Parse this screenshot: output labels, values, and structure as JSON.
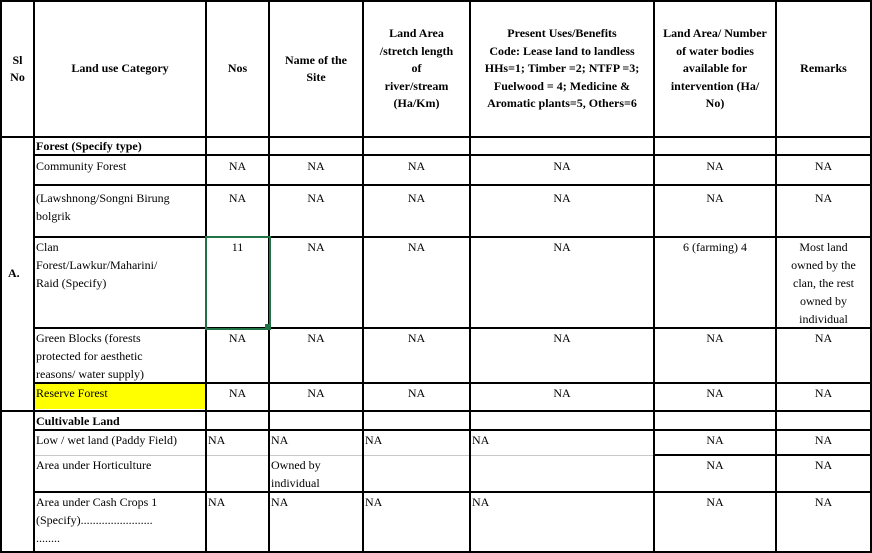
{
  "header": {
    "sl_no": "Sl\nNo",
    "land_use_category": "Land use Category",
    "nos": "Nos",
    "name_of_site": "Name of the\nSite",
    "land_area": "Land Area\n/stretch length\nof\nriver/stream\n(Ha/Km)",
    "present_uses": "Present Uses/Benefits\nCode: Lease land to landless\nHHs=1; Timber =2; NTFP =3;\nFuelwood = 4; Medicine &\nAromatic plants=5, Others=6",
    "water_bodies": "Land Area/ Number\nof water bodies\navailable for\nintervention (Ha/\nNo)",
    "remarks": "Remarks"
  },
  "section_a": {
    "label": "A.",
    "title": "Forest (Specify type)",
    "rows": [
      {
        "category": "Community Forest",
        "nos": "NA",
        "site": "NA",
        "area": "NA",
        "uses": "NA",
        "water": "NA",
        "remarks": "NA"
      },
      {
        "category": "(Lawshnong/Songni Birung\nbolgrik",
        "nos": "NA",
        "site": "NA",
        "area": "NA",
        "uses": "NA",
        "water": "NA",
        "remarks": "NA"
      },
      {
        "category": "Clan\nForest/Lawkur/Maharini/\nRaid (Specify)",
        "nos": "11",
        "site": "NA",
        "area": "NA",
        "uses": "NA",
        "water": "6 (farming) 4",
        "remarks": "Most land\nowned by the\nclan, the rest\nowned by\nindividual"
      },
      {
        "category": "Green Blocks (forests\nprotected for aesthetic\nreasons/ water supply)",
        "nos": "NA",
        "site": "NA",
        "area": "NA",
        "uses": "NA",
        "water": "NA",
        "remarks": "NA"
      },
      {
        "category": "Reserve Forest",
        "nos": "NA",
        "site": "NA",
        "area": "NA",
        "uses": "NA",
        "water": "NA",
        "remarks": "NA"
      }
    ]
  },
  "section_b": {
    "title": "Cultivable Land",
    "rows": [
      {
        "category": "Low / wet land (Paddy Field)",
        "nos": "NA",
        "site": "NA",
        "area": "NA",
        "uses": "NA",
        "water": "NA",
        "remarks": "NA"
      },
      {
        "category": "Area under Horticulture",
        "nos": "",
        "site": "Owned by\nindividual",
        "area": "",
        "uses": "",
        "water": "NA",
        "remarks": "NA"
      },
      {
        "category": "Area under Cash Crops 1\n(Specify)........................\n........",
        "nos": "NA",
        "site": "NA",
        "area": "NA",
        "uses": "NA",
        "water": "NA",
        "remarks": "NA"
      }
    ]
  },
  "colors": {
    "highlight": "#ffff00",
    "selection": "#217346"
  }
}
